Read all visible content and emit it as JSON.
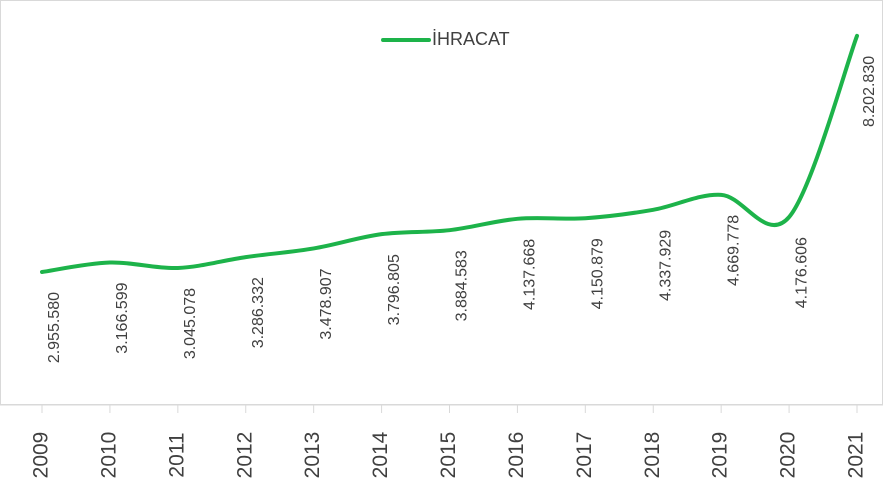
{
  "chart_data": {
    "type": "line",
    "categories": [
      "2009",
      "2010",
      "2011",
      "2012",
      "2013",
      "2014",
      "2015",
      "2016",
      "2017",
      "2018",
      "2019",
      "2020",
      "2021"
    ],
    "series": [
      {
        "name": "İHRACAT",
        "color": "#1db34a",
        "values": [
          2955580,
          3166599,
          3045078,
          3286332,
          3478907,
          3796805,
          3884583,
          4137668,
          4150879,
          4337929,
          4669778,
          4176606,
          8202830
        ],
        "value_labels": [
          "2.955.580",
          "3.166.599",
          "3.045.078",
          "3.286.332",
          "3.478.907",
          "3.796.805",
          "3.884.583",
          "4.137.668",
          "4.150.879",
          "4.337.929",
          "4.669.778",
          "4.176.606",
          "8.202.830"
        ]
      }
    ],
    "ylim": [
      0,
      9000000
    ],
    "smooth": true,
    "legend": "top"
  }
}
